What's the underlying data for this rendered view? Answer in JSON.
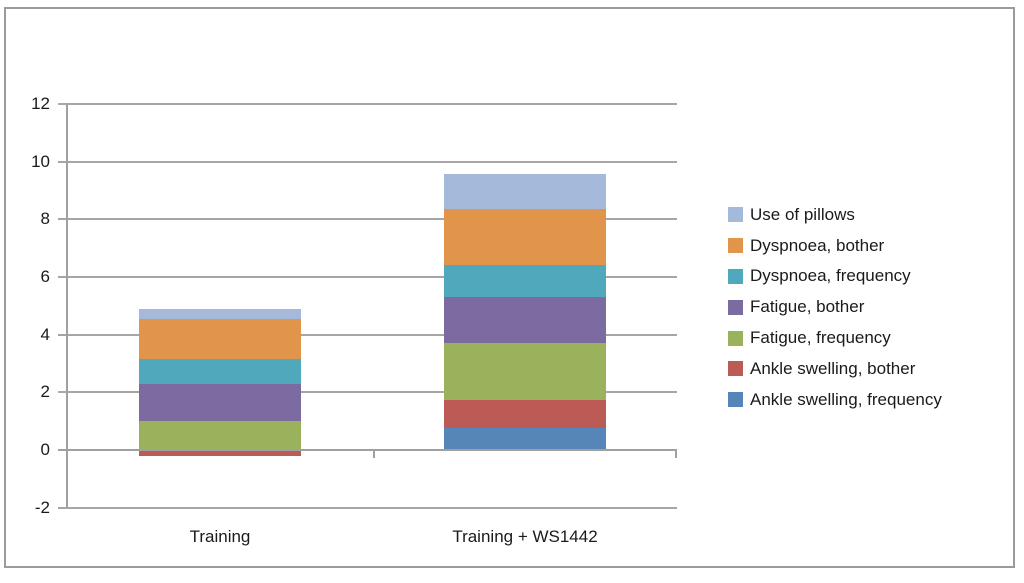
{
  "chart_data": {
    "type": "bar",
    "stacked": true,
    "title": "",
    "xlabel": "",
    "ylabel": "",
    "categories": [
      "Training",
      "Training + WS1442"
    ],
    "series": [
      {
        "name": "Ankle swelling, frequency",
        "color": "#5586B7",
        "values": [
          0,
          0.75
        ]
      },
      {
        "name": "Ankle swelling, bother",
        "color": "#BC5B55",
        "values": [
          -0.2,
          1.0
        ]
      },
      {
        "name": "Fatigue, frequency",
        "color": "#9AB25C",
        "values": [
          1.0,
          1.95
        ]
      },
      {
        "name": "Fatigue, bother",
        "color": "#7C6BA1",
        "values": [
          1.3,
          1.6
        ]
      },
      {
        "name": "Dyspnoea, frequency",
        "color": "#4FA8BC",
        "values": [
          0.85,
          1.1
        ]
      },
      {
        "name": "Dyspnoea, bother",
        "color": "#E0954B",
        "values": [
          1.4,
          1.95
        ]
      },
      {
        "name": "Use of pillows",
        "color": "#A5B9DB",
        "values": [
          0.35,
          1.2
        ]
      }
    ],
    "legend_top_to_bottom": [
      "Use of pillows",
      "Dyspnoea, bother",
      "Dyspnoea, frequency",
      "Fatigue, bother",
      "Fatigue, frequency",
      "Ankle swelling, bother",
      "Ankle swelling, frequency"
    ],
    "legend_position": "right",
    "ylim": [
      -2,
      12
    ],
    "yticks": [
      12,
      10,
      8,
      6,
      4,
      2,
      0,
      -2
    ],
    "grid": true
  },
  "colors": {
    "gridline": "#A6A6A6",
    "axis": "#A0A0A0",
    "border": "#9B9B9B",
    "text": "#1A1A1A",
    "background": "#FFFFFF"
  }
}
